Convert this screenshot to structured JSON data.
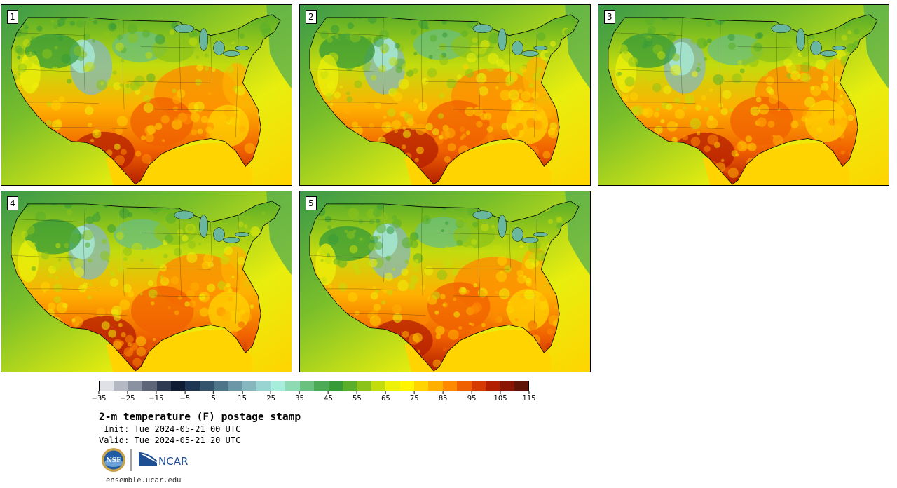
{
  "panels": [
    {
      "label": "1"
    },
    {
      "label": "2"
    },
    {
      "label": "3"
    },
    {
      "label": "4"
    },
    {
      "label": "5"
    }
  ],
  "colorbar": {
    "colors": [
      "#dfe1e6",
      "#b3b8c2",
      "#8a91a0",
      "#5d6679",
      "#2e3a52",
      "#0f1c33",
      "#1e3553",
      "#33526c",
      "#4d7489",
      "#6b97a6",
      "#86b7be",
      "#99d4d3",
      "#a8ecdc",
      "#8fd9b3",
      "#6bbf7f",
      "#4ca955",
      "#369a38",
      "#5aae2a",
      "#8cc31a",
      "#c3dc0d",
      "#eef10a",
      "#fff500",
      "#ffd400",
      "#ffb000",
      "#ff8a00",
      "#f06000",
      "#d63a00",
      "#b31e00",
      "#8b1505",
      "#5e1508"
    ],
    "tick_labels": [
      "−35",
      "−25",
      "−15",
      "−5",
      "5",
      "15",
      "25",
      "35",
      "45",
      "55",
      "65",
      "75",
      "85",
      "95",
      "105",
      "115"
    ]
  },
  "title": "2-m temperature (F) postage stamp",
  "init": " Init: Tue 2024-05-21 00 UTC",
  "valid": "Valid: Tue 2024-05-21 20 UTC",
  "logos": {
    "nsf": "NSF",
    "ncar": "NCAR"
  },
  "footer_url": "ensemble.ucar.edu"
}
